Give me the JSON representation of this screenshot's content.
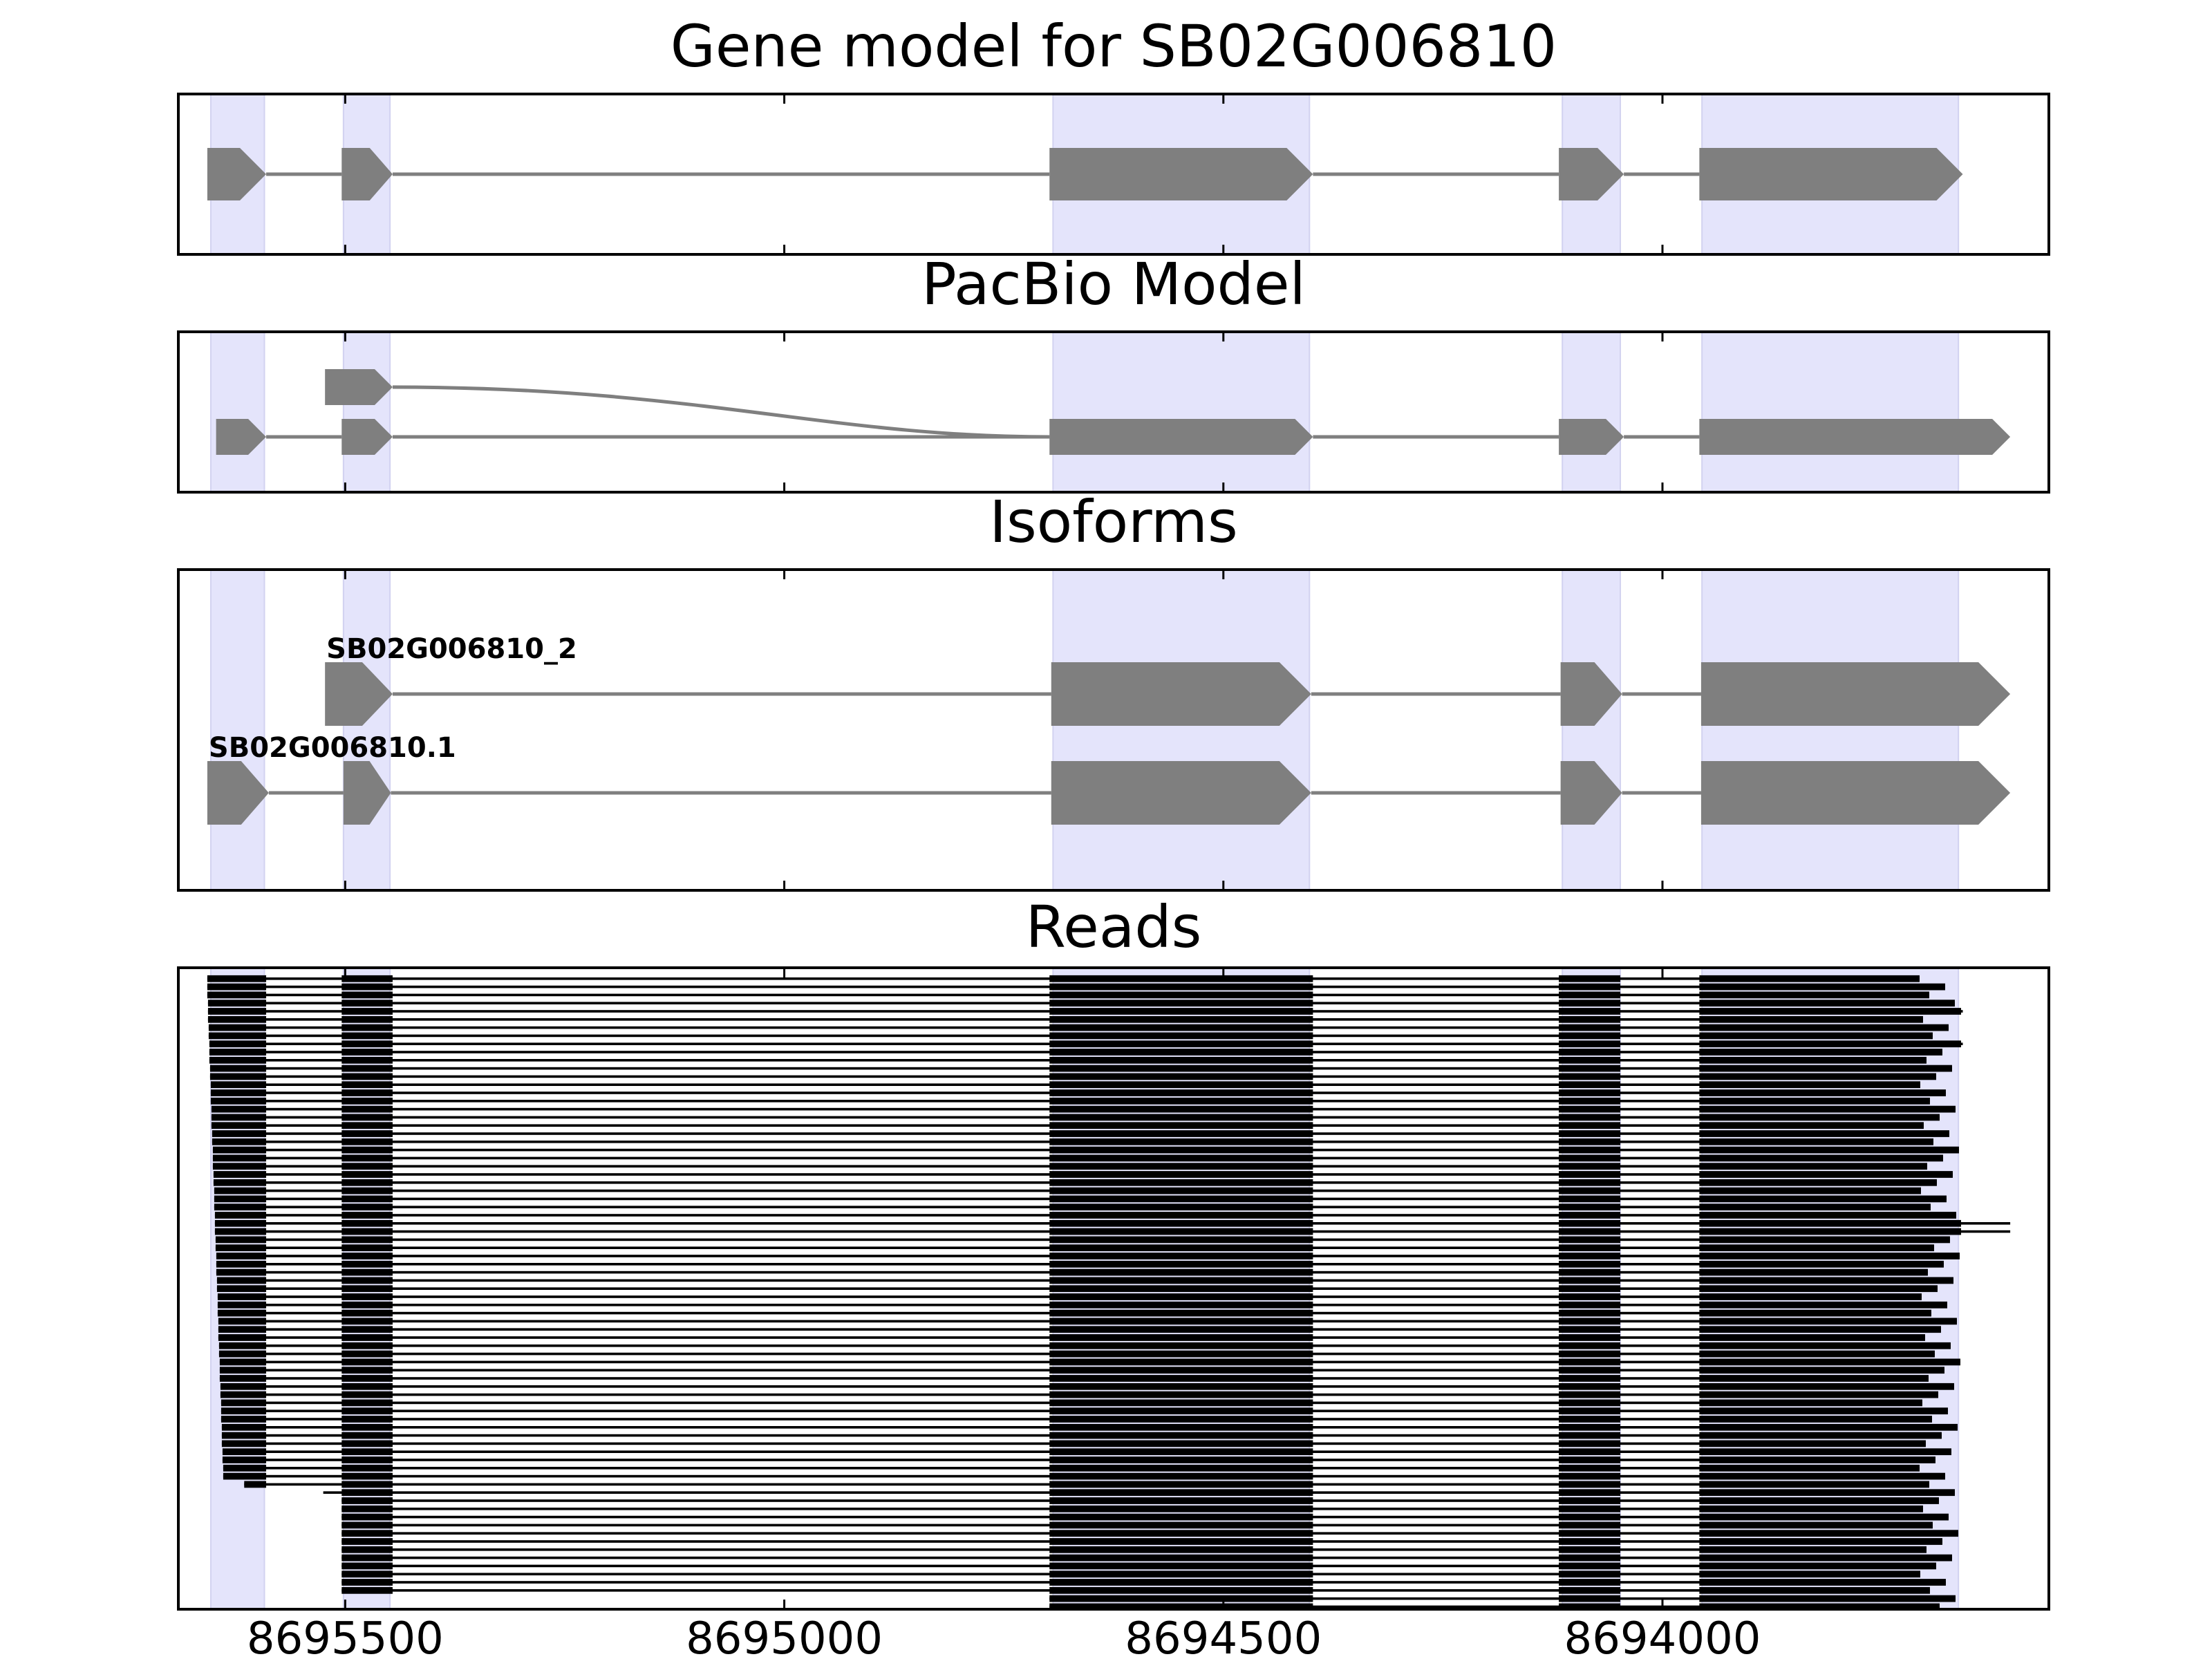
{
  "colors": {
    "highlight": "#e4e4fb",
    "feature": "#7f7f7f",
    "read": "#000000",
    "frame": "#000000"
  },
  "panels": [
    {
      "key": "gene",
      "title": "Gene model for SB02G006810"
    },
    {
      "key": "pacbio",
      "title": "PacBio Model"
    },
    {
      "key": "isoforms",
      "title": "Isoforms"
    },
    {
      "key": "reads",
      "title": "Reads"
    }
  ],
  "x_axis": {
    "direction": "descending",
    "range": [
      8695690,
      8693560
    ],
    "ticks": [
      {
        "value": 8695500,
        "label": "8695500"
      },
      {
        "value": 8695000,
        "label": "8695000"
      },
      {
        "value": 8694500,
        "label": "8694500"
      },
      {
        "value": 8694000,
        "label": "8694000"
      }
    ]
  },
  "highlight_exons": [
    [
      8695653,
      8695592
    ],
    [
      8695502,
      8695449
    ],
    [
      8694694,
      8694402
    ],
    [
      8694114,
      8694048
    ],
    [
      8693955,
      8693663
    ]
  ],
  "gene_model": {
    "exons": [
      [
        8695657,
        8695590
      ],
      [
        8695504,
        8695446
      ],
      [
        8694698,
        8694398
      ],
      [
        8694118,
        8694044
      ],
      [
        8693958,
        8693658
      ]
    ]
  },
  "pacbio_model": {
    "top": {
      "exons": [
        [
          8695523,
          8695446
        ]
      ]
    },
    "bottom": {
      "exons": [
        [
          8695647,
          8695590
        ],
        [
          8695504,
          8695446
        ],
        [
          8694698,
          8694398
        ],
        [
          8694118,
          8694044
        ],
        [
          8693958,
          8693604
        ]
      ]
    }
  },
  "isoforms": [
    {
      "name": "SB02G006810_2",
      "exons": [
        [
          8695523,
          8695446
        ],
        [
          8694696,
          8694400
        ],
        [
          8694116,
          8694046
        ],
        [
          8693956,
          8693604
        ]
      ]
    },
    {
      "name": "SB02G006810.1",
      "exons": [
        [
          8695657,
          8695587
        ],
        [
          8695502,
          8695448
        ],
        [
          8694696,
          8694400
        ],
        [
          8694116,
          8694046
        ],
        [
          8693956,
          8693604
        ]
      ]
    }
  ],
  "reads": {
    "row_count": 78,
    "exon_blocks": [
      [
        8695657,
        8695590
      ],
      [
        8695504,
        8695446
      ],
      [
        8694698,
        8694398
      ],
      [
        8694118,
        8694048
      ],
      [
        8693958,
        8693660
      ]
    ]
  }
}
